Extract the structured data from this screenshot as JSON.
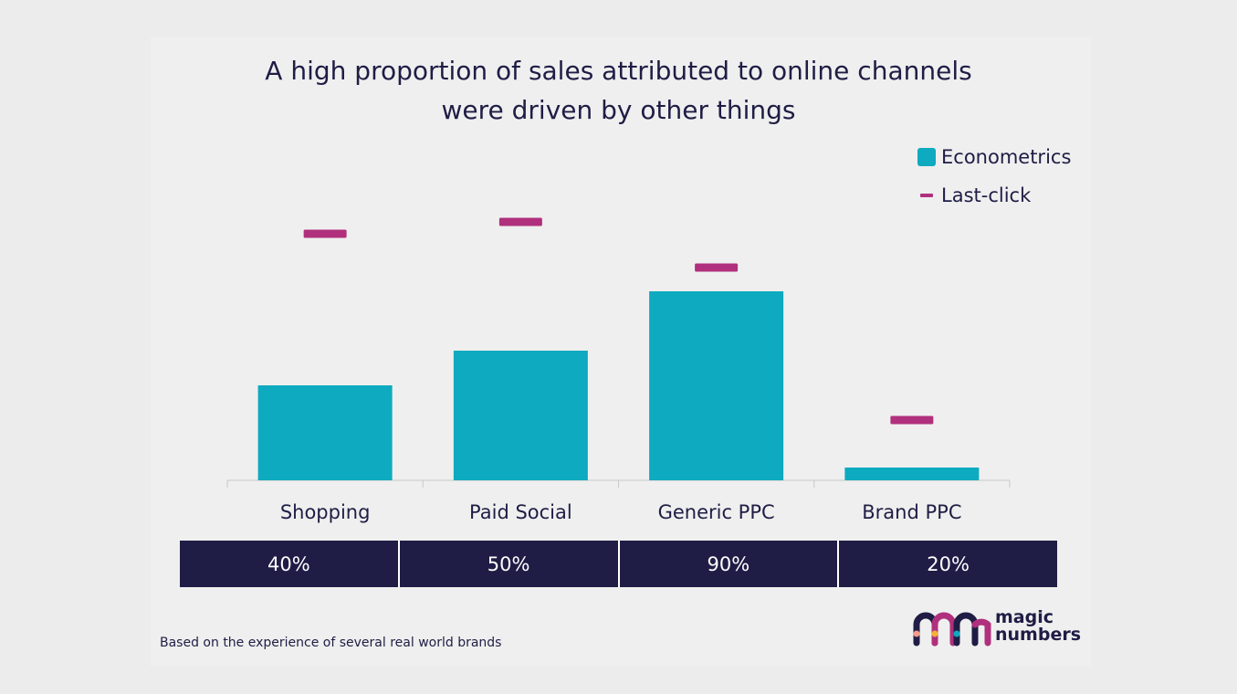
{
  "chart_data": {
    "type": "bar",
    "title": "A high proportion of sales attributed to online channels were driven by other things",
    "title_lines": [
      "A high proportion of sales attributed to online channels",
      "were driven by other things"
    ],
    "categories": [
      "Shopping",
      "Paid Social",
      "Generic PPC",
      "Brand PPC"
    ],
    "series": [
      {
        "name": "Econometrics",
        "kind": "bar",
        "values": [
          104,
          142,
          207,
          14
        ]
      },
      {
        "name": "Last-click",
        "kind": "marker",
        "values": [
          270,
          283,
          233,
          66
        ]
      }
    ],
    "ylim": [
      0,
      300
    ],
    "grid": false,
    "y_axis_labels": false,
    "legend_position": "top-right",
    "table_values": [
      "40%",
      "50%",
      "90%",
      "20%"
    ],
    "colors": {
      "Econometrics": "#0eaabf",
      "Last-click": "#b0307d"
    }
  },
  "footnote": "Based on the experience of several real world brands",
  "logo": {
    "line1": "magic",
    "line2": "numbers"
  },
  "colors": {
    "navy": "#1f1d45",
    "teal": "#0eaabf",
    "magenta": "#b0307d",
    "background": "#ececec"
  }
}
